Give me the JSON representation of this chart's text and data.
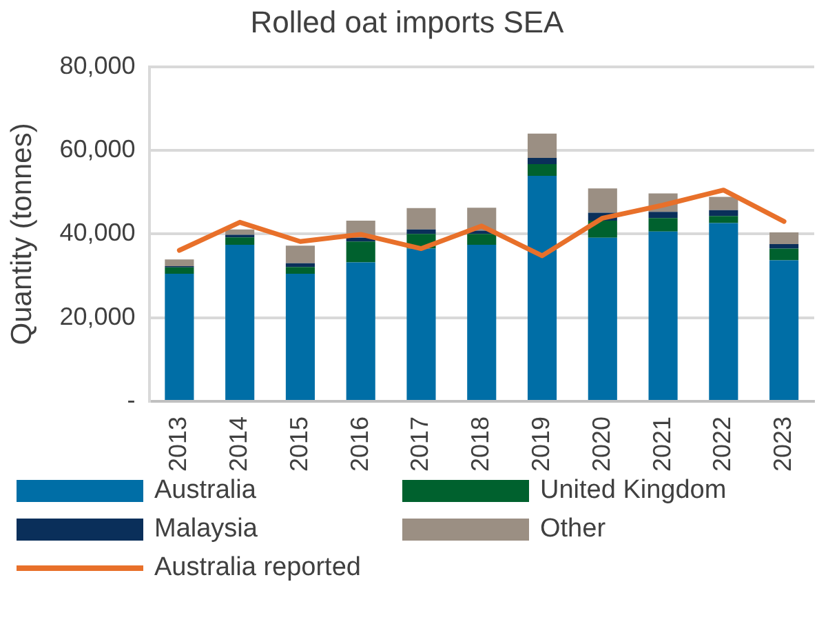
{
  "chart_data": {
    "type": "bar",
    "title": "Rolled oat imports SEA",
    "ylabel": "Quantity (tonnes)",
    "categories": [
      "2013",
      "2014",
      "2015",
      "2016",
      "2017",
      "2018",
      "2019",
      "2020",
      "2021",
      "2022",
      "2023"
    ],
    "stacked": true,
    "series": [
      {
        "name": "Australia",
        "color": "#006ea6",
        "values": [
          30500,
          37400,
          30500,
          33200,
          36500,
          37400,
          53900,
          39100,
          40600,
          42600,
          33700
        ]
      },
      {
        "name": "United Kingdom",
        "color": "#00612e",
        "values": [
          1500,
          1800,
          1600,
          5000,
          3500,
          2600,
          2800,
          4100,
          3200,
          1700,
          2800
        ]
      },
      {
        "name": "Malaysia",
        "color": "#0a2f5a",
        "values": [
          300,
          600,
          900,
          900,
          1100,
          800,
          1500,
          1900,
          1500,
          1400,
          1100
        ]
      },
      {
        "name": "Other",
        "color": "#9b8f83",
        "values": [
          1600,
          1300,
          4200,
          4100,
          5100,
          5500,
          5800,
          5800,
          4400,
          3200,
          2800
        ]
      },
      {
        "name": "Australia reported",
        "type": "line",
        "color": "#e8702a",
        "marker": "none",
        "values": [
          36100,
          42800,
          38200,
          39900,
          36500,
          41900,
          34800,
          43800,
          46900,
          50500,
          43000
        ]
      }
    ],
    "ylim": [
      0,
      80000
    ],
    "yticks": [
      {
        "value": 0,
        "label": "-"
      },
      {
        "value": 20000,
        "label": "20,000"
      },
      {
        "value": 40000,
        "label": "40,000"
      },
      {
        "value": 60000,
        "label": "60,000"
      },
      {
        "value": 80000,
        "label": "80,000"
      }
    ],
    "grid": "y",
    "legend": "bottom"
  }
}
